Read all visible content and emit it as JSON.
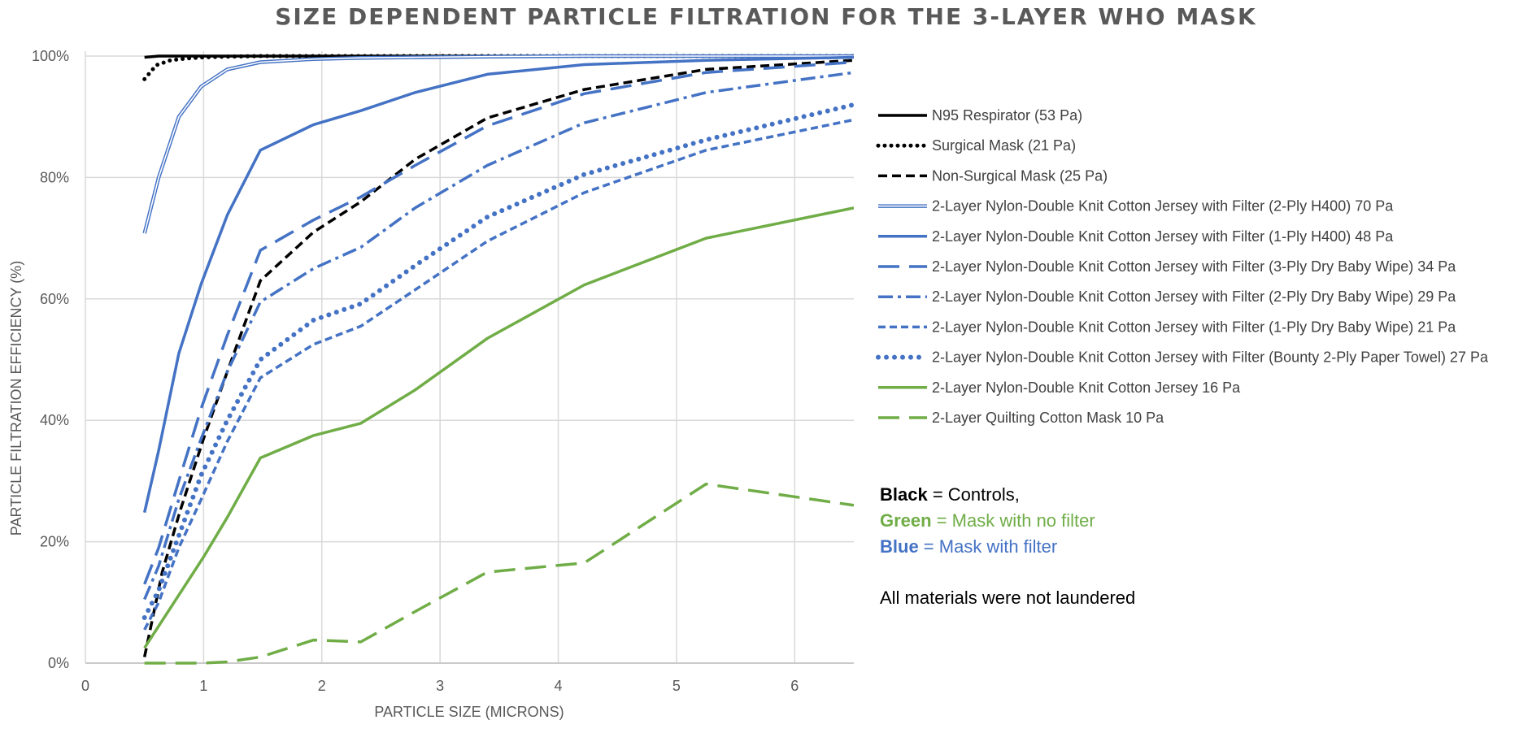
{
  "chart_data": {
    "type": "line",
    "title": "SIZE DEPENDENT PARTICLE FILTRATION FOR THE 3-LAYER WHO MASK",
    "xlabel": "PARTICLE SIZE (MICRONS)",
    "ylabel": "PARTICLE FILTRATION  EFFICIENCY (%)",
    "xlim": [
      0,
      6.5
    ],
    "ylim": [
      0,
      100
    ],
    "x_ticks": [
      "0",
      "1",
      "2",
      "3",
      "4",
      "5",
      "6"
    ],
    "y_ticks": [
      "0%",
      "20%",
      "40%",
      "60%",
      "80%",
      "100%"
    ],
    "grid": true,
    "legend_position": "right",
    "series": [
      {
        "name": "N95 Respirator (53 Pa)",
        "color": "#000000",
        "style": "solid",
        "x": [
          0.5,
          0.62,
          0.8,
          1.0,
          1.5,
          2.0,
          3.0,
          4.0,
          5.0,
          6.5
        ],
        "y": [
          99.8,
          100,
          100,
          100,
          100,
          100,
          100,
          100,
          100,
          100
        ]
      },
      {
        "name": "Surgical Mask (21 Pa)",
        "color": "#000000",
        "style": "dotted",
        "x": [
          0.5,
          0.6,
          0.72,
          0.85,
          1.0,
          1.2,
          1.5,
          2.0,
          3.0,
          4.0,
          5.0,
          6.5
        ],
        "y": [
          96.2,
          98.5,
          99.3,
          99.6,
          99.8,
          99.9,
          100,
          100,
          100,
          100,
          100,
          100
        ]
      },
      {
        "name": "Non-Surgical Mask (25 Pa)",
        "color": "#000000",
        "style": "dash",
        "x": [
          0.5,
          0.65,
          0.8,
          1.0,
          1.2,
          1.48,
          1.93,
          2.33,
          2.79,
          3.4,
          4.22,
          5.25,
          6.5
        ],
        "y": [
          1,
          15,
          25,
          37,
          48,
          63,
          71,
          76,
          83,
          89.8,
          94.5,
          97.8,
          99.3
        ]
      },
      {
        "name": "2-Layer Nylon-Double Knit Cotton Jersey with Filter (2-Ply H400) 70 Pa",
        "color": "#4472C4",
        "style": "double",
        "x": [
          0.5,
          0.62,
          0.79,
          0.98,
          1.2,
          1.48,
          1.93,
          2.33,
          2.79,
          3.4,
          4.22,
          5.25,
          6.5
        ],
        "y": [
          70.8,
          80,
          90,
          95,
          97.8,
          99,
          99.5,
          99.7,
          99.8,
          99.9,
          100,
          100,
          100
        ]
      },
      {
        "name": "2-Layer Nylon-Double Knit Cotton Jersey with Filter (1-Ply H400) 48 Pa",
        "color": "#4472C4",
        "style": "solid",
        "x": [
          0.5,
          0.62,
          0.79,
          0.98,
          1.2,
          1.48,
          1.93,
          2.33,
          2.79,
          3.4,
          4.22,
          5.25,
          6.5
        ],
        "y": [
          24.8,
          35,
          51,
          62.5,
          73.8,
          84.5,
          88.7,
          91,
          94,
          97,
          98.6,
          99.3,
          99.8
        ]
      },
      {
        "name": "2-Layer Nylon-Double Knit Cotton Jersey with Filter (3-Ply Dry Baby Wipe) 34 Pa",
        "color": "#4472C4",
        "style": "longdash",
        "x": [
          0.5,
          0.62,
          0.79,
          0.98,
          1.2,
          1.48,
          1.93,
          2.33,
          2.79,
          3.4,
          4.22,
          5.25,
          6.5
        ],
        "y": [
          13,
          19,
          30,
          42,
          54,
          68,
          73,
          76.8,
          82,
          88.5,
          93.8,
          97.3,
          99
        ]
      },
      {
        "name": "2-Layer Nylon-Double Knit Cotton Jersey with Filter (2-Ply Dry Baby Wipe) 29 Pa",
        "color": "#4472C4",
        "style": "dashdot",
        "x": [
          0.5,
          0.62,
          0.79,
          0.98,
          1.2,
          1.48,
          1.93,
          2.33,
          2.79,
          3.4,
          4.22,
          5.25,
          6.5
        ],
        "y": [
          10.5,
          16,
          27,
          37,
          48,
          59.5,
          65,
          68.5,
          75,
          82,
          89,
          94,
          97.3
        ]
      },
      {
        "name": "2-Layer Nylon-Double Knit Cotton Jersey with Filter (1-Ply Dry Baby Wipe) 21 Pa",
        "color": "#4472C4",
        "style": "shortdash",
        "x": [
          0.5,
          0.62,
          0.79,
          0.98,
          1.2,
          1.48,
          1.93,
          2.33,
          2.79,
          3.4,
          4.22,
          5.25,
          6.5
        ],
        "y": [
          5.5,
          10,
          19,
          27,
          36.5,
          47,
          52.5,
          55.5,
          61.5,
          69.5,
          77.5,
          84.5,
          89.5
        ]
      },
      {
        "name": "2-Layer Nylon-Double Knit Cotton Jersey with Filter (Bounty 2-Ply Paper Towel) 27 Pa",
        "color": "#4472C4",
        "style": "roundot",
        "x": [
          0.5,
          0.62,
          0.79,
          0.98,
          1.2,
          1.48,
          1.93,
          2.33,
          2.79,
          3.4,
          4.22,
          5.25,
          6.5
        ],
        "y": [
          7.5,
          12,
          21,
          31,
          40,
          50,
          56.5,
          59.2,
          65.5,
          73.5,
          80.5,
          86.2,
          92
        ]
      },
      {
        "name": "2-Layer Nylon-Double Knit Cotton Jersey 16 Pa",
        "color": "#70AD47",
        "style": "solid",
        "x": [
          0.5,
          1.0,
          1.2,
          1.48,
          1.93,
          2.33,
          2.79,
          3.4,
          4.22,
          5.25,
          6.5
        ],
        "y": [
          2.5,
          17.5,
          24,
          33.8,
          37.5,
          39.5,
          45,
          53.5,
          62.3,
          70,
          75
        ]
      },
      {
        "name": "2-Layer Quilting Cotton Mask 10 Pa",
        "color": "#70AD47",
        "style": "longdash",
        "x": [
          0.5,
          0.98,
          1.2,
          1.48,
          1.93,
          2.33,
          2.79,
          3.4,
          4.22,
          5.25,
          6.5
        ],
        "y": [
          0,
          0,
          0.2,
          1,
          3.8,
          3.5,
          8.5,
          15,
          16.5,
          29.5,
          26
        ]
      }
    ]
  },
  "notes": {
    "line1_bold": "Black",
    "line1_rest": " = Controls,",
    "line2_bold": "Green",
    "line2_rest": " = Mask with no filter",
    "line3_bold": "Blue",
    "line3_rest": " = Mask with filter",
    "line4": "All materials  were not laundered",
    "colors": {
      "black": "#000000",
      "green": "#70AD47",
      "blue": "#4472C4"
    }
  }
}
